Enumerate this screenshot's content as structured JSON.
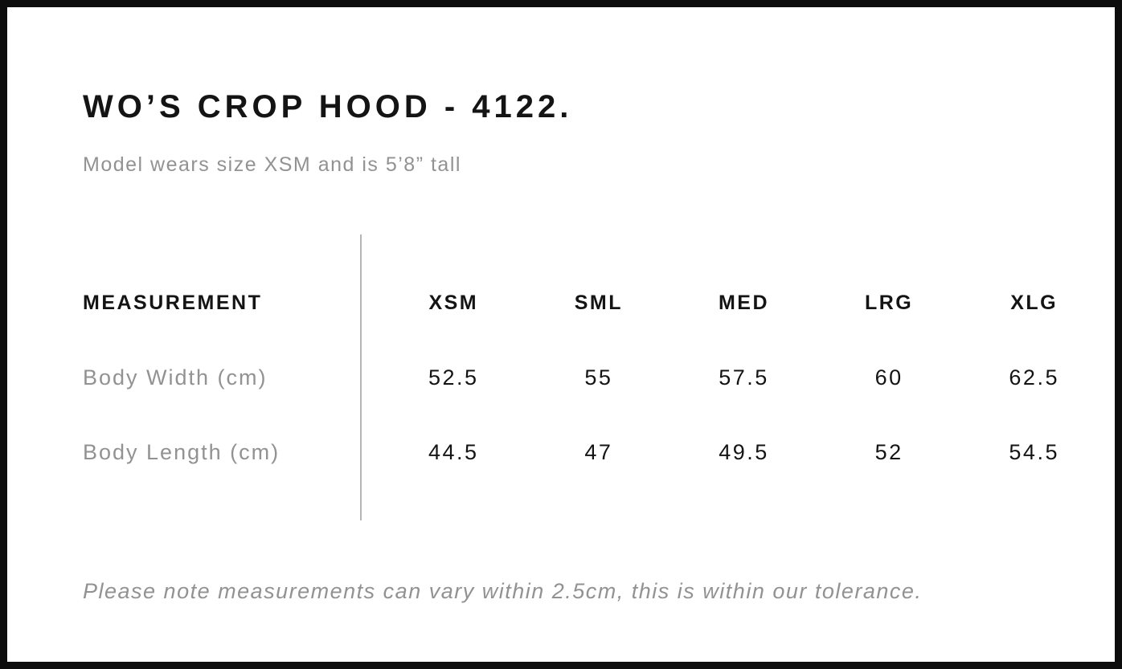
{
  "panel": {
    "title": "WO’S CROP HOOD - 4122.",
    "subtitle": "Model wears size XSM and is 5’8” tall",
    "footnote": "Please note measurements can vary within 2.5cm, this is within our tolerance."
  },
  "size_chart": {
    "header": {
      "measurement": "MEASUREMENT",
      "sizes": [
        "XSM",
        "SML",
        "MED",
        "LRG",
        "XLG"
      ]
    },
    "rows": [
      {
        "label": "Body Width (cm)",
        "values": [
          "52.5",
          "55",
          "57.5",
          "60",
          "62.5"
        ]
      },
      {
        "label": "Body Length (cm)",
        "values": [
          "44.5",
          "47",
          "49.5",
          "52",
          "54.5"
        ]
      }
    ]
  },
  "colors": {
    "text_primary": "#141414",
    "text_muted": "#929292",
    "divider": "#b5b5b5",
    "frame_border": "#0d0d0d",
    "background": "#ffffff"
  }
}
